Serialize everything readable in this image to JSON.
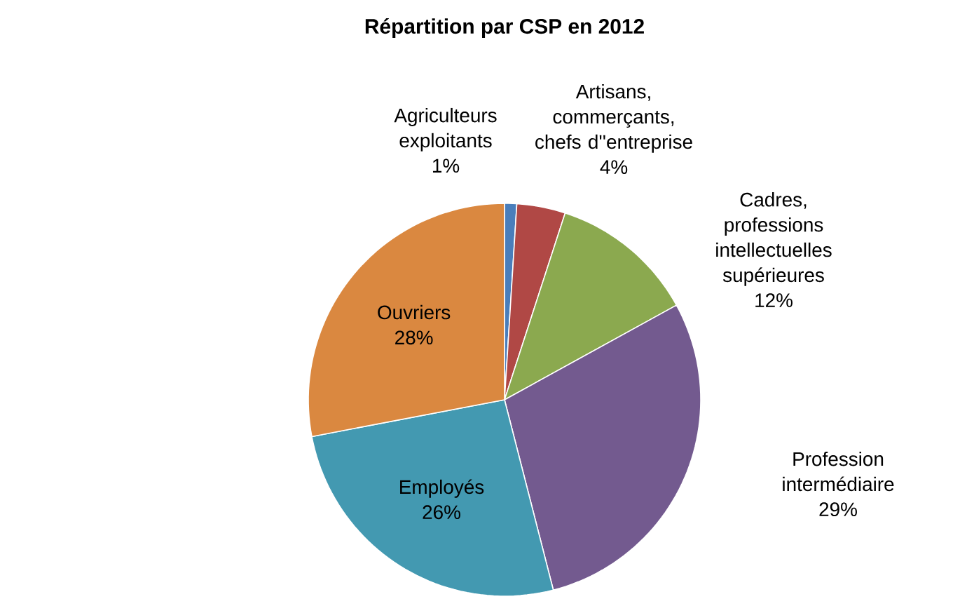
{
  "chart_data": {
    "type": "pie",
    "title": "Répartition par CSP en 2012",
    "categories": [
      "Agriculteurs exploitants",
      "Artisans, commerçants, chefs d''entreprise",
      "Cadres, professions intellectuelles supérieures",
      "Profession intermédiaire",
      "Employés",
      "Ouvriers"
    ],
    "values": [
      1,
      4,
      12,
      29,
      26,
      28
    ],
    "value_labels": [
      "1%",
      "4%",
      "12%",
      "29%",
      "26%",
      "28%"
    ],
    "colors": [
      "#4a7ebb",
      "#b04845",
      "#8ba94f",
      "#735a8f",
      "#4399b1",
      "#da8840"
    ]
  }
}
